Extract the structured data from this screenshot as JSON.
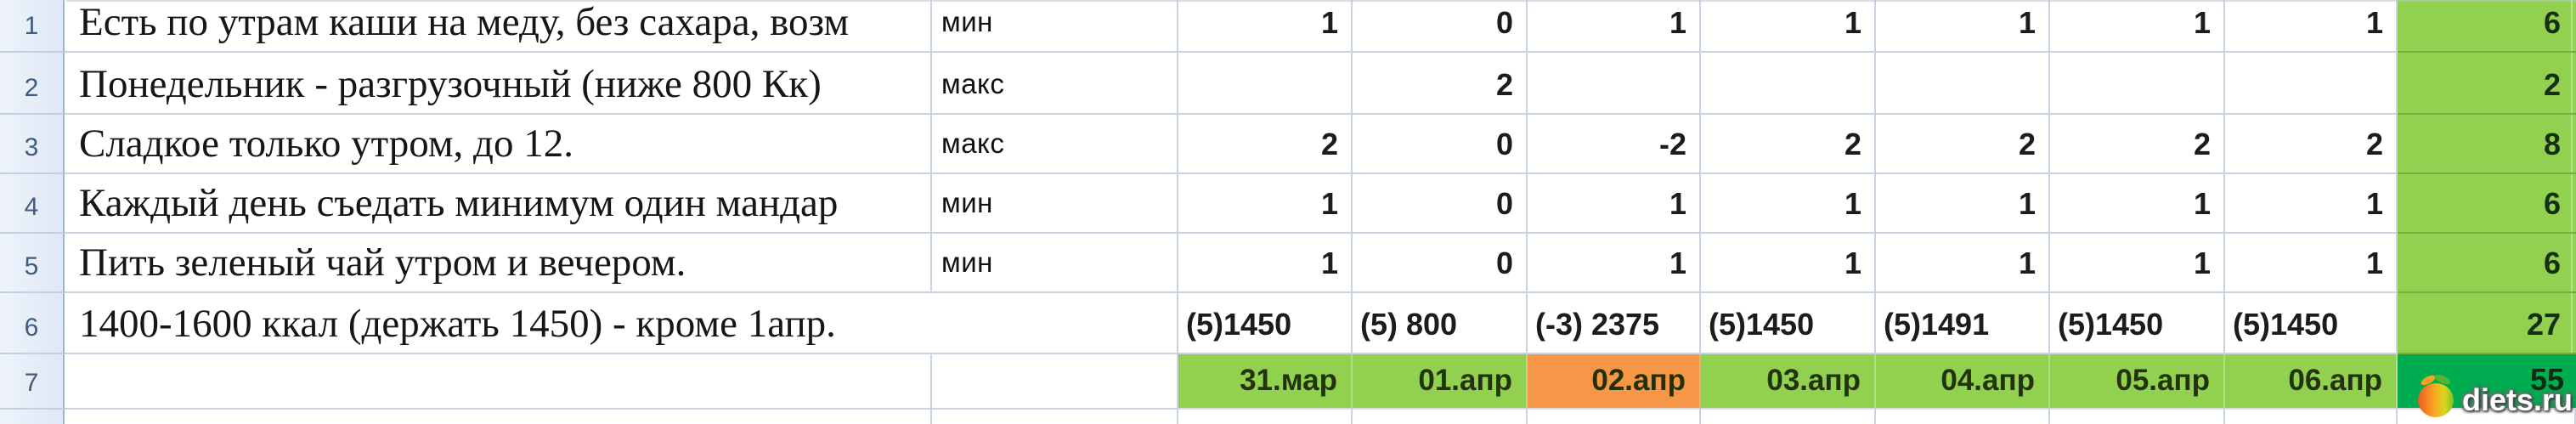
{
  "table": {
    "rows": [
      {
        "num": "1",
        "label": "Есть по утрам каши на меду, без сахара, возм",
        "type": "мин",
        "values": [
          "1",
          "0",
          "1",
          "1",
          "1",
          "1",
          "1"
        ],
        "total": "6",
        "values_align": "right"
      },
      {
        "num": "2",
        "label": "Понедельник - разгрузочный (ниже 800 Кк)",
        "type": "макс",
        "values": [
          "",
          "2",
          "",
          "",
          "",
          "",
          ""
        ],
        "total": "2",
        "values_align": "right"
      },
      {
        "num": "3",
        "label": "Сладкое только утром, до 12.",
        "type": "макс",
        "values": [
          "2",
          "0",
          "-2",
          "2",
          "2",
          "2",
          "2"
        ],
        "total": "8",
        "values_align": "right"
      },
      {
        "num": "4",
        "label": "Каждый день съедать минимум один мандар",
        "type": "мин",
        "values": [
          "1",
          "0",
          "1",
          "1",
          "1",
          "1",
          "1"
        ],
        "total": "6",
        "values_align": "right"
      },
      {
        "num": "5",
        "label": "Пить зеленый чай утром и вечером.",
        "type": "мин",
        "values": [
          "1",
          "0",
          "1",
          "1",
          "1",
          "1",
          "1"
        ],
        "total": "6",
        "values_align": "right"
      },
      {
        "num": "6",
        "label": "1400-1600 ккал (держать 1450) - кроме 1апр.",
        "type": "",
        "values": [
          "(5)1450",
          "(5) 800",
          "(-3) 2375",
          "(5)1450",
          "(5)1491",
          "(5)1450",
          "(5)1450"
        ],
        "total": "27",
        "values_align": "left"
      }
    ],
    "date_row": {
      "num": "7",
      "dates": [
        "31.мар",
        "01.апр",
        "02.апр",
        "03.апр",
        "04.апр",
        "05.апр",
        "06.апр"
      ],
      "highlight_index": 2,
      "total": "55"
    }
  },
  "colors": {
    "green": "#92d050",
    "orange": "#f79646",
    "dark_green": "#00ac50",
    "gridline": "#c9d2e2",
    "header_bg": "#e4ecf7",
    "header_text": "#3d5c80"
  },
  "watermark": {
    "text": "diets.ru",
    "logo": "apple-logo-icon"
  }
}
